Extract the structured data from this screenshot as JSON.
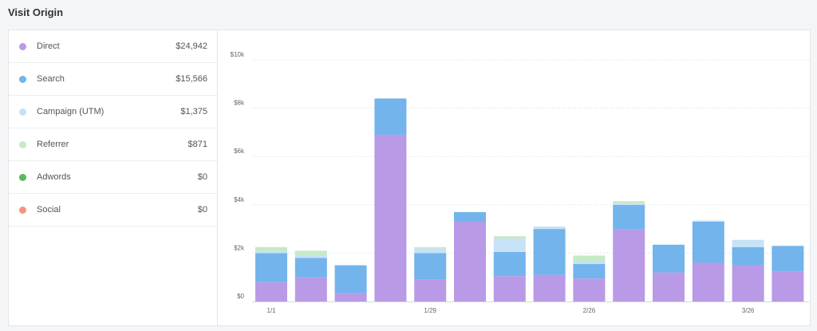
{
  "header": {
    "title": "Visit Origin"
  },
  "legend": [
    {
      "name": "Direct",
      "value": "$24,942",
      "color": "#b99ae6"
    },
    {
      "name": "Search",
      "value": "$15,566",
      "color": "#72b4eb"
    },
    {
      "name": "Campaign (UTM)",
      "value": "$1,375",
      "color": "#c7e1f6"
    },
    {
      "name": "Referrer",
      "value": "$871",
      "color": "#c6e9c8"
    },
    {
      "name": "Adwords",
      "value": "$0",
      "color": "#5cb85c"
    },
    {
      "name": "Social",
      "value": "$0",
      "color": "#f2957f"
    }
  ],
  "chart_data": {
    "type": "bar",
    "stacked": true,
    "grid": true,
    "ylim": [
      0,
      10000
    ],
    "yticks": [
      {
        "value": 0,
        "label": "$0"
      },
      {
        "value": 2000,
        "label": "$2k"
      },
      {
        "value": 4000,
        "label": "$4k"
      },
      {
        "value": 6000,
        "label": "$6k"
      },
      {
        "value": 8000,
        "label": "$8k"
      },
      {
        "value": 10000,
        "label": "$10k"
      }
    ],
    "x_tick_labels": [
      {
        "index": 0,
        "label": "1/1"
      },
      {
        "index": 4,
        "label": "1/29"
      },
      {
        "index": 8,
        "label": "2/26"
      },
      {
        "index": 12,
        "label": "3/26"
      }
    ],
    "num_bars": 14,
    "series": [
      {
        "name": "Direct",
        "color": "#b99ae6",
        "values": [
          800,
          1000,
          350,
          6900,
          900,
          3300,
          1050,
          1100,
          950,
          3000,
          1200,
          1600,
          1500,
          1250
        ]
      },
      {
        "name": "Search",
        "color": "#72b4eb",
        "values": [
          1200,
          800,
          1150,
          1500,
          1100,
          400,
          1000,
          1900,
          600,
          1000,
          1150,
          1700,
          750,
          1050
        ]
      },
      {
        "name": "Campaign (UTM)",
        "color": "#c7e1f6",
        "values": [
          50,
          100,
          0,
          0,
          200,
          0,
          550,
          100,
          100,
          50,
          0,
          50,
          300,
          0
        ]
      },
      {
        "name": "Referrer",
        "color": "#c6e9c8",
        "values": [
          200,
          200,
          0,
          0,
          50,
          0,
          100,
          0,
          250,
          100,
          0,
          0,
          0,
          0
        ]
      },
      {
        "name": "Adwords",
        "color": "#5cb85c",
        "values": [
          0,
          0,
          0,
          0,
          0,
          0,
          0,
          0,
          0,
          0,
          0,
          0,
          0,
          0
        ]
      },
      {
        "name": "Social",
        "color": "#f2957f",
        "values": [
          0,
          0,
          0,
          0,
          0,
          0,
          0,
          0,
          0,
          0,
          0,
          0,
          0,
          0
        ]
      }
    ]
  }
}
